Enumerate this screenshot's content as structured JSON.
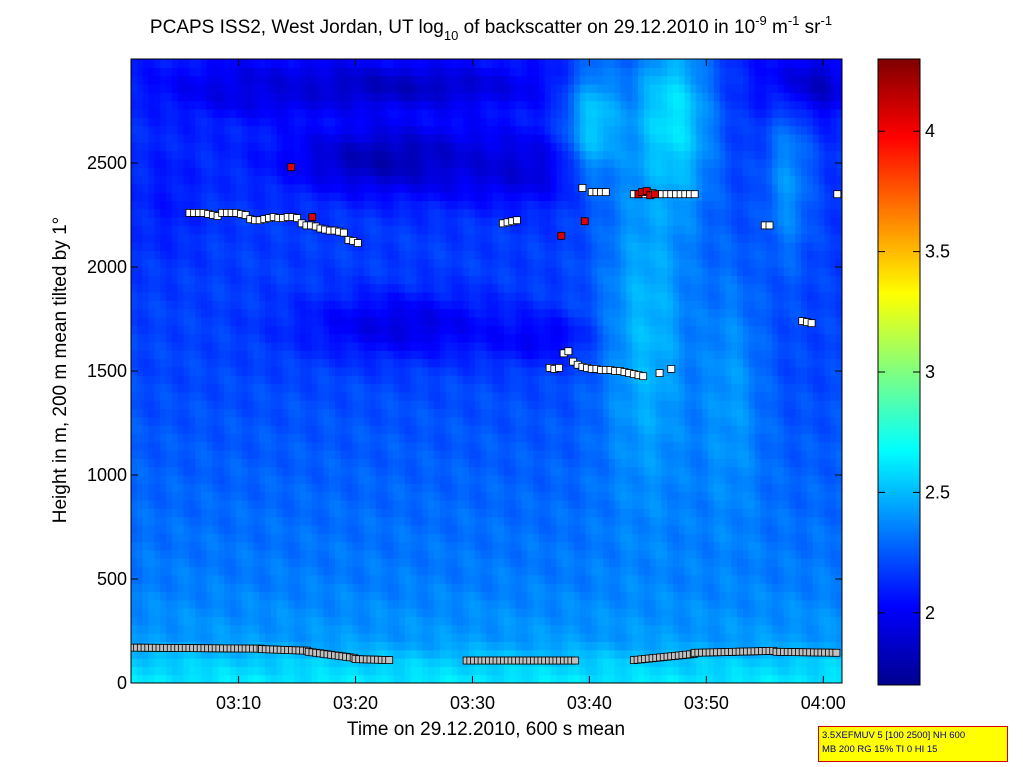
{
  "chart_data": {
    "type": "heatmap",
    "title": {
      "prefix": "PCAPS ISS2, West Jordan, UT log",
      "log_base": "10",
      "middle": " of backscatter on 29.12.2010 in 10",
      "exp1": "-9",
      "unit1": " m",
      "exp2": "-1",
      "unit2": " sr",
      "exp3": "-1"
    },
    "xlabel": "Time on 29.12.2010, 600 s mean",
    "ylabel": "Height in m, 200 m mean tilted by 1°",
    "x_unit": "minutes after 03:00",
    "xlim": [
      0.8,
      61.6
    ],
    "ylim": [
      0,
      3000
    ],
    "xticks": [
      {
        "value": 10,
        "label": "03:10"
      },
      {
        "value": 20,
        "label": "03:20"
      },
      {
        "value": 30,
        "label": "03:30"
      },
      {
        "value": 40,
        "label": "03:40"
      },
      {
        "value": 50,
        "label": "03:50"
      },
      {
        "value": 60,
        "label": "04:00"
      }
    ],
    "yticks": [
      {
        "value": 0,
        "label": "0"
      },
      {
        "value": 500,
        "label": "500"
      },
      {
        "value": 1000,
        "label": "1000"
      },
      {
        "value": 1500,
        "label": "1500"
      },
      {
        "value": 2000,
        "label": "2000"
      },
      {
        "value": 2500,
        "label": "2500"
      }
    ],
    "colorbar": {
      "min": 1.7,
      "max": 4.3,
      "ticks": [
        {
          "value": 2,
          "label": "2"
        },
        {
          "value": 2.5,
          "label": "2.5"
        },
        {
          "value": 3,
          "label": "3"
        },
        {
          "value": 3.5,
          "label": "3.5"
        },
        {
          "value": 4,
          "label": "4"
        }
      ],
      "colormap": "jet"
    },
    "background_field": {
      "description": "log10 backscatter, mostly 2.0–2.6; higher (~2.6) near ground and in a bright vertical band near 03:43–03:50; lowest (~1.8) dark patches aloft",
      "base_profile": [
        {
          "height": 0,
          "value": 2.62
        },
        {
          "height": 100,
          "value": 2.55
        },
        {
          "height": 200,
          "value": 2.42
        },
        {
          "height": 500,
          "value": 2.34
        },
        {
          "height": 1000,
          "value": 2.27
        },
        {
          "height": 1500,
          "value": 2.2
        },
        {
          "height": 2000,
          "value": 2.18
        },
        {
          "height": 2500,
          "value": 2.15
        },
        {
          "height": 3000,
          "value": 2.1
        }
      ],
      "features": [
        {
          "kind": "dark",
          "t": 23,
          "h": 2520,
          "dt": 9,
          "dh": 170,
          "value": 1.82
        },
        {
          "kind": "dark",
          "t": 22,
          "h": 2870,
          "dt": 14,
          "dh": 110,
          "value": 1.85
        },
        {
          "kind": "dark",
          "t": 34,
          "h": 2480,
          "dt": 7,
          "dh": 170,
          "value": 1.92
        },
        {
          "kind": "dark",
          "t": 58.5,
          "h": 2870,
          "dt": 3.5,
          "dh": 150,
          "value": 1.82
        },
        {
          "kind": "dark",
          "t": 24,
          "h": 1720,
          "dt": 9,
          "dh": 160,
          "value": 1.95
        },
        {
          "kind": "dark",
          "t": 36,
          "h": 1660,
          "dt": 5,
          "dh": 120,
          "value": 2.0
        },
        {
          "kind": "dark",
          "t": 12,
          "h": 2850,
          "dt": 7,
          "dh": 120,
          "value": 1.95
        },
        {
          "kind": "dark",
          "t": 4,
          "h": 2350,
          "dt": 3,
          "dh": 300,
          "value": 2.08
        },
        {
          "kind": "bright",
          "t": 47,
          "h": 2700,
          "dt": 3.5,
          "dh": 450,
          "value": 2.65
        },
        {
          "kind": "bright",
          "t": 45,
          "h": 1700,
          "dt": 4,
          "dh": 900,
          "value": 2.5
        },
        {
          "kind": "bright",
          "t": 40.5,
          "h": 2700,
          "dt": 2.5,
          "dh": 300,
          "value": 2.55
        },
        {
          "kind": "bright",
          "t": 52,
          "h": 1350,
          "dt": 3,
          "dh": 700,
          "value": 2.42
        },
        {
          "kind": "bright",
          "t": 57,
          "h": 2400,
          "dt": 2,
          "dh": 400,
          "value": 2.4
        }
      ]
    },
    "series": [
      {
        "name": "upper layer points (white)",
        "color": "#ffffff",
        "points": [
          [
            5.8,
            2260
          ],
          [
            6.2,
            2260
          ],
          [
            6.6,
            2260
          ],
          [
            7.0,
            2260
          ],
          [
            7.4,
            2255
          ],
          [
            7.8,
            2250
          ],
          [
            8.2,
            2245
          ],
          [
            8.6,
            2260
          ],
          [
            9.0,
            2260
          ],
          [
            9.4,
            2260
          ],
          [
            9.8,
            2260
          ],
          [
            10.2,
            2255
          ],
          [
            10.6,
            2250
          ],
          [
            11.0,
            2230
          ],
          [
            11.4,
            2225
          ],
          [
            11.8,
            2225
          ],
          [
            12.2,
            2230
          ],
          [
            12.6,
            2235
          ],
          [
            13.0,
            2240
          ],
          [
            13.4,
            2235
          ],
          [
            13.8,
            2235
          ],
          [
            14.2,
            2240
          ],
          [
            14.6,
            2240
          ],
          [
            15.0,
            2235
          ],
          [
            15.4,
            2210
          ],
          [
            15.8,
            2200
          ],
          [
            16.2,
            2200
          ],
          [
            16.6,
            2195
          ],
          [
            17.0,
            2185
          ],
          [
            17.4,
            2180
          ],
          [
            17.8,
            2175
          ],
          [
            18.2,
            2175
          ],
          [
            18.6,
            2170
          ],
          [
            19.0,
            2165
          ],
          [
            19.4,
            2130
          ],
          [
            19.8,
            2125
          ],
          [
            20.2,
            2115
          ],
          [
            32.6,
            2210
          ],
          [
            33.0,
            2215
          ],
          [
            33.4,
            2220
          ],
          [
            33.8,
            2225
          ],
          [
            36.6,
            1515
          ],
          [
            37.0,
            1510
          ],
          [
            37.4,
            1515
          ],
          [
            37.8,
            1585
          ],
          [
            38.2,
            1595
          ],
          [
            38.6,
            1545
          ],
          [
            39.0,
            1530
          ],
          [
            39.4,
            1520
          ],
          [
            39.8,
            1515
          ],
          [
            40.2,
            1510
          ],
          [
            40.6,
            1510
          ],
          [
            41.0,
            1505
          ],
          [
            41.4,
            1505
          ],
          [
            41.8,
            1505
          ],
          [
            42.2,
            1500
          ],
          [
            42.6,
            1500
          ],
          [
            43.0,
            1495
          ],
          [
            43.4,
            1490
          ],
          [
            43.8,
            1485
          ],
          [
            44.2,
            1480
          ],
          [
            44.6,
            1475
          ],
          [
            46.0,
            1490
          ],
          [
            47.0,
            1510
          ],
          [
            39.4,
            2380
          ],
          [
            40.2,
            2360
          ],
          [
            40.6,
            2360
          ],
          [
            41.0,
            2360
          ],
          [
            41.4,
            2360
          ],
          [
            43.8,
            2350
          ],
          [
            44.2,
            2350
          ],
          [
            44.6,
            2350
          ],
          [
            45.4,
            2355
          ],
          [
            45.8,
            2350
          ],
          [
            46.2,
            2350
          ],
          [
            46.6,
            2350
          ],
          [
            47.0,
            2350
          ],
          [
            47.4,
            2350
          ],
          [
            47.8,
            2350
          ],
          [
            48.2,
            2350
          ],
          [
            48.6,
            2350
          ],
          [
            49.0,
            2350
          ],
          [
            55.0,
            2200
          ],
          [
            55.4,
            2200
          ],
          [
            58.2,
            1740
          ],
          [
            58.6,
            1735
          ],
          [
            59.0,
            1730
          ],
          [
            61.2,
            2350
          ]
        ]
      },
      {
        "name": "red points",
        "color": "#dd0000",
        "points": [
          [
            14.5,
            2480
          ],
          [
            16.3,
            2240
          ],
          [
            37.6,
            2150
          ],
          [
            39.6,
            2220
          ],
          [
            44.2,
            2350
          ],
          [
            44.5,
            2360
          ],
          [
            44.9,
            2365
          ],
          [
            45.2,
            2345
          ],
          [
            45.6,
            2350
          ]
        ]
      },
      {
        "name": "mixing layer points (grey)",
        "color": "#c0c0c0",
        "segments": [
          {
            "t_start": 1.0,
            "t_end": 12.0,
            "h_start": 170,
            "h_end": 165
          },
          {
            "t_start": 12.0,
            "t_end": 16.0,
            "h_start": 163,
            "h_end": 155
          },
          {
            "t_start": 16.0,
            "t_end": 20.0,
            "h_start": 150,
            "h_end": 120
          },
          {
            "t_start": 20.0,
            "t_end": 23.0,
            "h_start": 115,
            "h_end": 110
          },
          {
            "t_start": 29.5,
            "t_end": 38.8,
            "h_start": 108,
            "h_end": 108
          },
          {
            "t_start": 43.8,
            "t_end": 49.0,
            "h_start": 110,
            "h_end": 140
          },
          {
            "t_start": 49.0,
            "t_end": 56.0,
            "h_start": 145,
            "h_end": 155
          },
          {
            "t_start": 56.0,
            "t_end": 61.4,
            "h_start": 150,
            "h_end": 145
          }
        ],
        "step": 0.32
      }
    ]
  },
  "info_box": {
    "line1": "3.5XEFMUV 5 [100 2500] NH 600",
    "line2": "MB 200 RG 15% TI 0 HI 15"
  }
}
